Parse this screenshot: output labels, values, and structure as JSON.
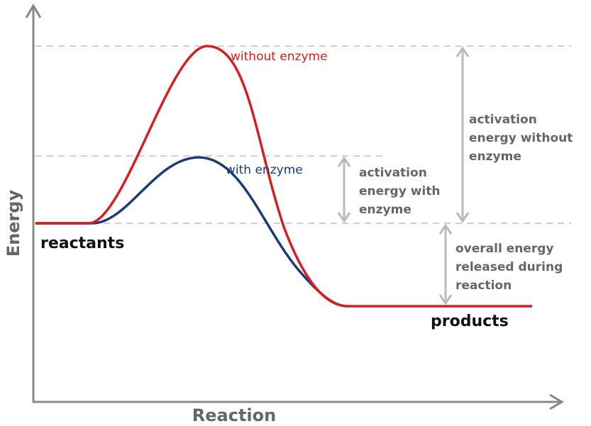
{
  "axes": {
    "y_label": "Energy",
    "x_label": "Reaction"
  },
  "curves": {
    "without_enzyme": "without enzyme",
    "with_enzyme": "with enzyme"
  },
  "levels": {
    "reactants": "reactants",
    "products": "products"
  },
  "annotations": {
    "activation_without": [
      "activation",
      "energy without",
      "enzyme"
    ],
    "activation_with": [
      "activation",
      "energy with",
      "enzyme"
    ],
    "overall": [
      "overall energy",
      "released during",
      "reaction"
    ]
  }
}
